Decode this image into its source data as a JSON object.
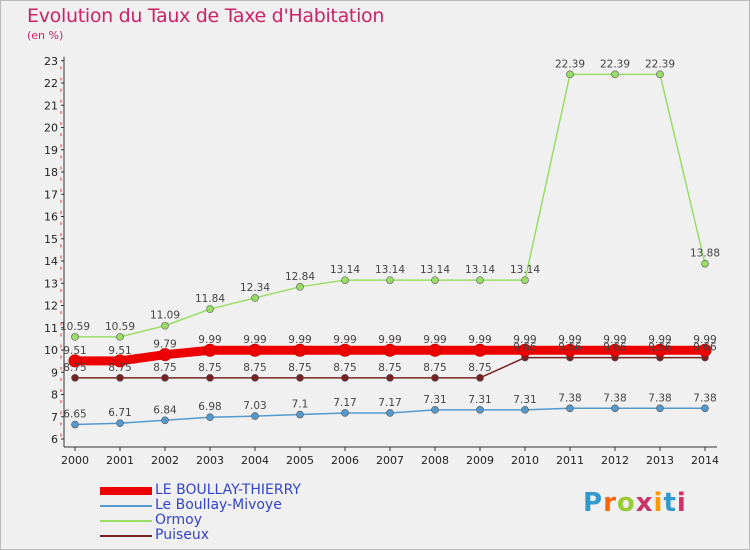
{
  "header": {
    "title": "Evolution du Taux de Taxe d'Habitation",
    "subtitle": "(en %)"
  },
  "logo": {
    "text": "Proxiti",
    "colors": [
      "#3399cc",
      "#ff6600",
      "#99cc33",
      "#cc3366",
      "#ff9900",
      "#3399cc",
      "#cc3366"
    ]
  },
  "chart_data": {
    "type": "line",
    "title": "Evolution du Taux de Taxe d'Habitation",
    "ylabel": "(en %)",
    "xlabel": "",
    "x": [
      "2000",
      "2001",
      "2002",
      "2003",
      "2004",
      "2005",
      "2006",
      "2007",
      "2008",
      "2009",
      "2010",
      "2011",
      "2012",
      "2013",
      "2014"
    ],
    "ylim": [
      6,
      23
    ],
    "yticks": [
      6,
      7,
      8,
      9,
      10,
      11,
      12,
      13,
      14,
      15,
      16,
      17,
      18,
      19,
      20,
      21,
      22,
      23
    ],
    "grid": false,
    "legend_position": "bottom-left",
    "series": [
      {
        "name": "LE BOULLAY-THIERRY",
        "color": "#ee0000",
        "width": 9,
        "values": [
          9.51,
          9.51,
          9.79,
          9.99,
          9.99,
          9.99,
          9.99,
          9.99,
          9.99,
          9.99,
          9.99,
          9.99,
          9.99,
          9.99,
          9.99
        ],
        "labels": [
          "9.51",
          "9.51",
          "9.79",
          "9.99",
          "9.99",
          "9.99",
          "9.99",
          "9.99",
          "9.99",
          "9.99",
          "9.99",
          "9.99",
          "9.99",
          "9.99",
          "9.99"
        ]
      },
      {
        "name": "Le Boullay-Mivoye",
        "color": "#5599cc",
        "width": 1.5,
        "values": [
          6.65,
          6.71,
          6.84,
          6.98,
          7.03,
          7.1,
          7.17,
          7.17,
          7.31,
          7.31,
          7.31,
          7.38,
          7.38,
          7.38,
          7.38
        ],
        "labels": [
          "6.65",
          "6.71",
          "6.84",
          "6.98",
          "7.03",
          "7.1",
          "7.17",
          "7.17",
          "7.31",
          "7.31",
          "7.31",
          "7.38",
          "7.38",
          "7.38",
          "7.38"
        ]
      },
      {
        "name": "Ormoy",
        "color": "#99dd66",
        "width": 1.5,
        "values": [
          10.59,
          10.59,
          11.09,
          11.84,
          12.34,
          12.84,
          13.14,
          13.14,
          13.14,
          13.14,
          13.14,
          22.39,
          22.39,
          22.39,
          13.88
        ],
        "labels": [
          "10.59",
          "10.59",
          "11.09",
          "11.84",
          "12.34",
          "12.84",
          "13.14",
          "13.14",
          "13.14",
          "13.14",
          "13.14",
          "22.39",
          "22.39",
          "22.39",
          "13.88"
        ]
      },
      {
        "name": "Puiseux",
        "color": "#772222",
        "width": 1.5,
        "values": [
          8.75,
          8.75,
          8.75,
          8.75,
          8.75,
          8.75,
          8.75,
          8.75,
          8.75,
          8.75,
          9.66,
          9.66,
          9.66,
          9.66,
          9.66
        ],
        "labels": [
          "8.75",
          "8.75",
          "8.75",
          "8.75",
          "8.75",
          "8.75",
          "8.75",
          "8.75",
          "8.75",
          "8.75",
          "9.66",
          "9.66",
          "9.66",
          "9.66",
          "9.66"
        ]
      }
    ]
  }
}
